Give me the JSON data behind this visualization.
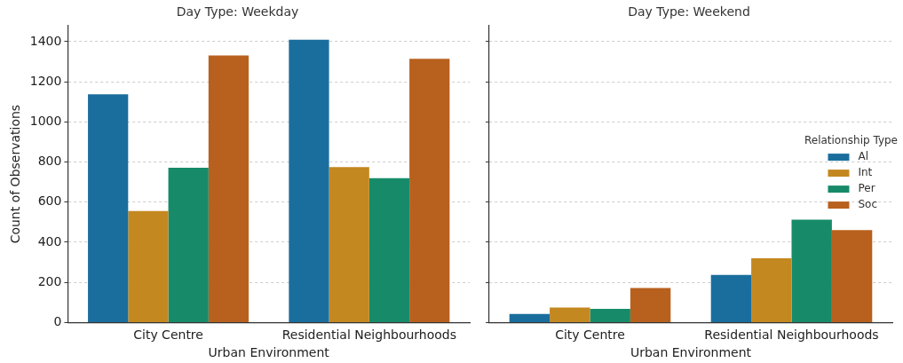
{
  "chart_data": [
    {
      "type": "bar",
      "title": "Day Type: Weekday",
      "xlabel": "Urban Environment",
      "ylabel": "Count of Observations",
      "categories": [
        "City Centre",
        "Residential Neighbourhoods"
      ],
      "series": [
        {
          "color": "#1a6e9e",
          "values": [
            1137,
            1409
          ]
        },
        {
          "color": "#c48820",
          "values": [
            556,
            775
          ]
        },
        {
          "color": "#178b69",
          "values": [
            771,
            719
          ]
        },
        {
          "color": "#b8601e",
          "values": [
            1331,
            1314
          ]
        }
      ],
      "ylim": [
        0,
        1480
      ],
      "yticks": [
        0,
        200,
        400,
        600,
        800,
        1000,
        1200,
        1400
      ],
      "grid": "y",
      "legend": false
    },
    {
      "type": "bar",
      "title": "Day Type: Weekend",
      "xlabel": "Urban Environment",
      "legend_title": "Relationship Type",
      "categories": [
        "City Centre",
        "Residential Neighbourhoods"
      ],
      "series": [
        {
          "name": "Al",
          "color": "#1a6e9e",
          "values": [
            43,
            237
          ]
        },
        {
          "name": "Int",
          "color": "#c48820",
          "values": [
            75,
            320
          ]
        },
        {
          "name": "Per",
          "color": "#178b69",
          "values": [
            68,
            513
          ]
        },
        {
          "name": "Soc",
          "color": "#b8601e",
          "values": [
            172,
            461
          ]
        }
      ],
      "ylim": [
        0,
        1480
      ],
      "yticks": [
        0,
        200,
        400,
        600,
        800,
        1000,
        1200,
        1400
      ],
      "grid": "y",
      "legend": "center right",
      "tick_labels": "x"
    }
  ]
}
